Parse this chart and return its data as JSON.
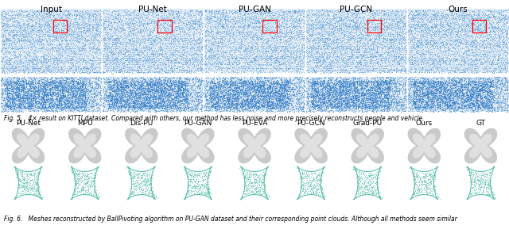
{
  "fig5_caption": "Fig. 5.   4× result on KITTI dataset. Compared with others, our method has less noise and more precisely reconstructs people and vehicle.",
  "fig6_caption": "Fig. 6.   Meshes reconstructed by BallPivoting algorithm on PU-GAN dataset and their corresponding point clouds. Although all methods seem similar",
  "fig5_labels": [
    "Input",
    "PU-Net",
    "PU-GAN",
    "PU-GCN",
    "Ours"
  ],
  "fig6_labels": [
    "PU-Net",
    "MPU",
    "Dis-PU",
    "PU-GAN",
    "PU-EVA",
    "PU-GCN",
    "Grad-PU",
    "Ours",
    "GT"
  ],
  "bg_color": "#ffffff",
  "blue_dark": "#3a7ec8",
  "blue_light": "#a8cce8",
  "teal_fill": "#c8eee8",
  "teal_edge": "#5bbfaa",
  "mesh_fill": "#c8c8c8",
  "mesh_edge": "#aaaaaa"
}
